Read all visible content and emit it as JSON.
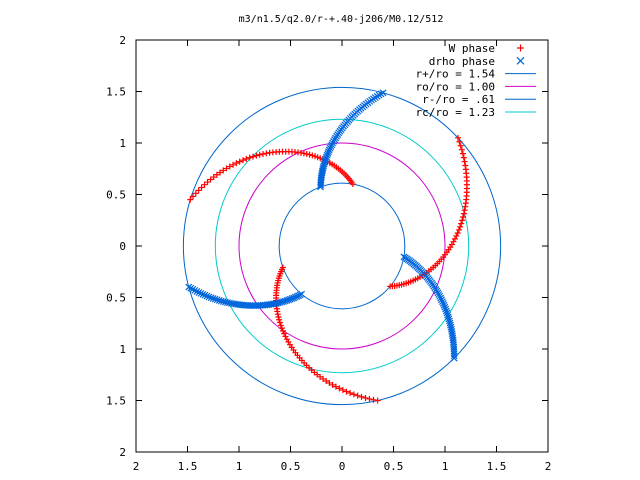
{
  "chart_data": {
    "type": "scatter",
    "title": "m3/n1.5/q2.0/r-+.40-j206/M0.12/512",
    "xlabel": "",
    "ylabel": "",
    "xlim": [
      -2,
      2
    ],
    "ylim": [
      -2,
      2
    ],
    "x_ticks": [
      -2,
      -1.5,
      -1,
      -0.5,
      0,
      0.5,
      1,
      1.5,
      2
    ],
    "y_ticks": [
      -2,
      -1.5,
      -1,
      -0.5,
      0,
      0.5,
      1,
      1.5,
      2
    ],
    "x_tick_labels": [
      "2",
      "1.5",
      "1",
      "0.5",
      "0",
      "0.5",
      "1",
      "1.5",
      "2"
    ],
    "y_tick_labels": [
      "2",
      "1.5",
      "1",
      "0.5",
      "0",
      "0.5",
      "1",
      "1.5",
      "2"
    ],
    "grid": false,
    "legend_position": "top-right",
    "series": [
      {
        "name": "W phase",
        "marker": "plus",
        "color": "#ff0000",
        "spiral": {
          "r_start": 1.54,
          "r_end": 0.61,
          "theta_start_deg": 163,
          "theta_end_deg": 80,
          "arms": 3,
          "arm_spacing_deg": 120
        }
      },
      {
        "name": "drho phase",
        "marker": "cross",
        "color": "#0066dd",
        "spiral": {
          "r_start": 0.61,
          "r_end": 1.54,
          "theta_start_deg": 110,
          "theta_end_deg": 75,
          "arms": 3,
          "arm_spacing_deg": 120
        }
      }
    ],
    "circles": [
      {
        "name": "r+/ro = 1.54",
        "r": 1.54,
        "color": "#0066cc"
      },
      {
        "name": "ro/ro = 1.00",
        "r": 1.0,
        "color": "#cc00cc"
      },
      {
        "name": "r-/ro = .61",
        "r": 0.61,
        "color": "#0066cc"
      },
      {
        "name": "rc/ro = 1.23",
        "r": 1.23,
        "color": "#00cccc"
      }
    ]
  }
}
